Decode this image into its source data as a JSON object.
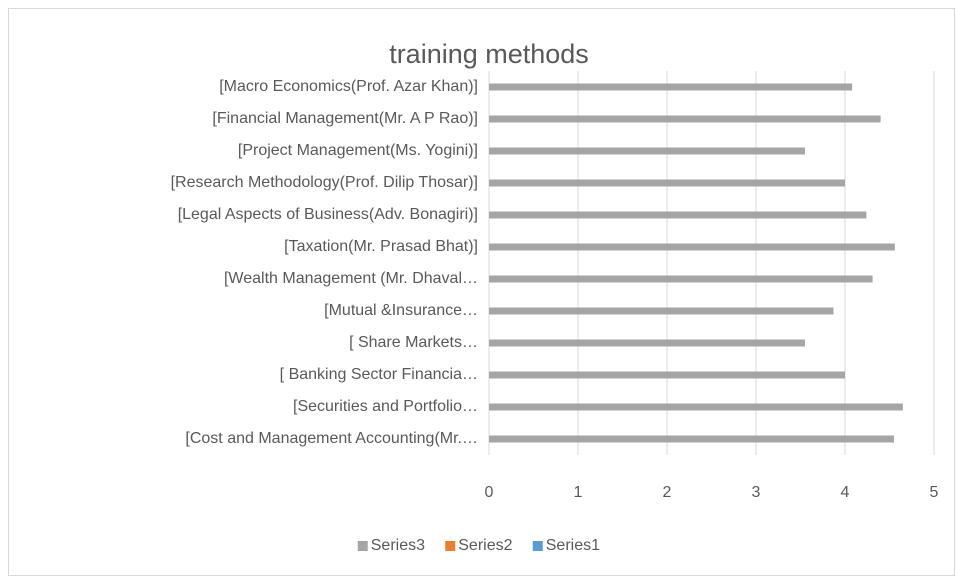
{
  "chart_data": {
    "type": "barh",
    "title": "training methods",
    "categories": [
      "[Macro Economics(Prof. Azar Khan)]",
      "[Financial Management(Mr. A P Rao)]",
      "[Project Management(Ms. Yogini)]",
      "[Research Methodology(Prof. Dilip Thosar)]",
      "[Legal Aspects of Business(Adv. Bonagiri)]",
      "[Taxation(Mr. Prasad Bhat)]",
      "[Wealth Management (Mr. Dhaval…",
      "[Mutual &Insurance…",
      "[ Share Markets…",
      "[ Banking Sector Financia…",
      "[Securities and Portfolio…",
      "[Cost and Management Accounting(Mr.…"
    ],
    "series": [
      {
        "name": "Series3",
        "color": "#a5a5a5",
        "values": [
          4.08,
          4.4,
          3.55,
          4.0,
          4.24,
          4.56,
          4.31,
          3.87,
          3.55,
          4.0,
          4.65,
          4.55
        ]
      },
      {
        "name": "Series2",
        "color": "#ed7d31",
        "values": [
          null,
          null,
          null,
          null,
          null,
          null,
          null,
          null,
          null,
          null,
          null,
          null
        ]
      },
      {
        "name": "Series1",
        "color": "#5b9bd5",
        "values": [
          null,
          null,
          null,
          null,
          null,
          null,
          null,
          null,
          null,
          null,
          null,
          null
        ]
      }
    ],
    "xlim": [
      0,
      5
    ],
    "xticks": [
      0,
      1,
      2,
      3,
      4,
      5
    ],
    "grid": true,
    "legend": "bottom"
  }
}
